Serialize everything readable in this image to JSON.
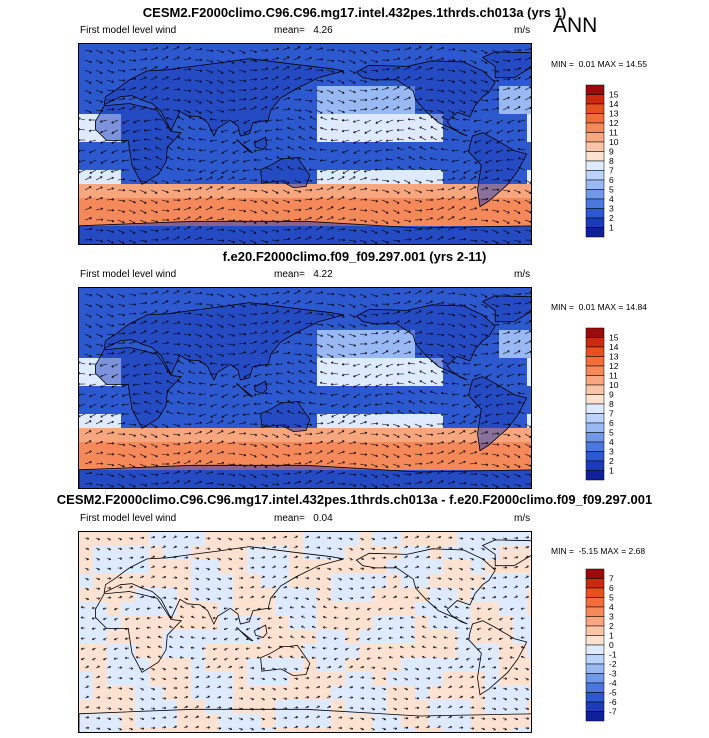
{
  "season": "ANN",
  "panels": [
    {
      "title": "CESM2.F2000climo.C96.C96.mg17.intel.432pes.1thrds.ch013a (yrs 1)",
      "variable": "First model level wind",
      "mean_label": "mean=",
      "mean": "4.26",
      "units": "m/s",
      "min_label": "MIN =",
      "min": "0.01",
      "max_label": "MAX =",
      "max": "14.55",
      "colorbar_ticks": [
        "15",
        "14",
        "13",
        "12",
        "11",
        "10",
        "9",
        "8",
        "7",
        "6",
        "5",
        "4",
        "3",
        "2",
        "1"
      ],
      "colors": [
        "#9c0b0b",
        "#cc2a0f",
        "#e8511f",
        "#f26d3a",
        "#f5895a",
        "#f7a67e",
        "#fac4a6",
        "#fde2d2",
        "#ddeaff",
        "#bcd4fb",
        "#98b9f4",
        "#7199ea",
        "#4b78de",
        "#2c59cf",
        "#1b3cba",
        "#0e219b"
      ]
    },
    {
      "title": "f.e20.F2000climo.f09_f09.297.001 (yrs 2-11)",
      "variable": "First model level wind",
      "mean_label": "mean=",
      "mean": "4.22",
      "units": "m/s",
      "min_label": "MIN =",
      "min": "0.01",
      "max_label": "MAX =",
      "max": "14.84",
      "colorbar_ticks": [
        "15",
        "14",
        "13",
        "12",
        "11",
        "10",
        "9",
        "8",
        "7",
        "6",
        "5",
        "4",
        "3",
        "2",
        "1"
      ],
      "colors": [
        "#9c0b0b",
        "#cc2a0f",
        "#e8511f",
        "#f26d3a",
        "#f5895a",
        "#f7a67e",
        "#fac4a6",
        "#fde2d2",
        "#ddeaff",
        "#bcd4fb",
        "#98b9f4",
        "#7199ea",
        "#4b78de",
        "#2c59cf",
        "#1b3cba",
        "#0e219b"
      ]
    },
    {
      "title": "CESM2.F2000climo.C96.C96.mg17.intel.432pes.1thrds.ch013a - f.e20.F2000climo.f09_f09.297.001",
      "variable": "First model level wind",
      "mean_label": "mean=",
      "mean": "0.04",
      "units": "m/s",
      "min_label": "MIN =",
      "min": "-5.15",
      "max_label": "MAX =",
      "max": "2.68",
      "colorbar_ticks": [
        "7",
        "6",
        "5",
        "4",
        "3",
        "2",
        "1",
        "0",
        "-1",
        "-2",
        "-3",
        "-4",
        "-5",
        "-6",
        "-7"
      ],
      "colors": [
        "#9c0b0b",
        "#cc2a0f",
        "#e8511f",
        "#f26d3a",
        "#f5895a",
        "#f7a67e",
        "#fac4a6",
        "#fde2d2",
        "#ddeaff",
        "#bcd4fb",
        "#98b9f4",
        "#7199ea",
        "#4b78de",
        "#2c59cf",
        "#1b3cba",
        "#0e219b"
      ]
    }
  ],
  "chart_data": [
    {
      "type": "heatmap",
      "title": "CESM2.F2000climo.C96.C96.mg17.intel.432pes.1thrds.ch013a (yrs 1)",
      "subtitle": "First model level wind",
      "units": "m/s",
      "mean": 4.26,
      "min": 0.01,
      "max": 14.55,
      "colorbar": {
        "levels": [
          1,
          2,
          3,
          4,
          5,
          6,
          7,
          8,
          9,
          10,
          11,
          12,
          13,
          14,
          15
        ],
        "range": [
          0,
          16
        ]
      },
      "overlay": "wind vectors"
    },
    {
      "type": "heatmap",
      "title": "f.e20.F2000climo.f09_f09.297.001 (yrs 2-11)",
      "subtitle": "First model level wind",
      "units": "m/s",
      "mean": 4.22,
      "min": 0.01,
      "max": 14.84,
      "colorbar": {
        "levels": [
          1,
          2,
          3,
          4,
          5,
          6,
          7,
          8,
          9,
          10,
          11,
          12,
          13,
          14,
          15
        ],
        "range": [
          0,
          16
        ]
      },
      "overlay": "wind vectors"
    },
    {
      "type": "heatmap",
      "title": "CESM2.F2000climo.C96.C96.mg17.intel.432pes.1thrds.ch013a - f.e20.F2000climo.f09_f09.297.001",
      "subtitle": "First model level wind",
      "units": "m/s",
      "mean": 0.04,
      "min": -5.15,
      "max": 2.68,
      "colorbar": {
        "levels": [
          -7,
          -6,
          -5,
          -4,
          -3,
          -2,
          -1,
          0,
          1,
          2,
          3,
          4,
          5,
          6,
          7
        ],
        "range": [
          -8,
          8
        ]
      },
      "overlay": "wind vector differences"
    }
  ]
}
